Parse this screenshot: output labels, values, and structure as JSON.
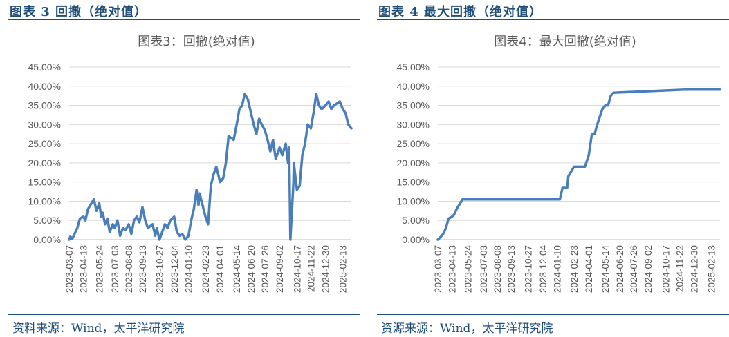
{
  "figures": [
    {
      "heading": "图表 3 回撤（绝对值）",
      "source": "资料来源：Wind，太平洋研究院"
    },
    {
      "heading": "图表 4 最大回撤（绝对值）",
      "source": "资源来源：Wind，太平洋研究院"
    }
  ],
  "chart_data": [
    {
      "type": "line",
      "title": "图表3：回撤(绝对值)",
      "ylim": [
        0,
        45
      ],
      "yticks": [
        "0.00%",
        "5.00%",
        "10.00%",
        "15.00%",
        "20.00%",
        "25.00%",
        "30.00%",
        "35.00%",
        "40.00%",
        "45.00%"
      ],
      "xticks": [
        "2023-03-07",
        "2023-04-13",
        "2023-05-24",
        "2023-07-03",
        "2023-08-08",
        "2023-09-13",
        "2023-10-27",
        "2023-12-04",
        "2024-01-10",
        "2024-02-23",
        "2024-04-01",
        "2024-05-14",
        "2024-06-20",
        "2024-07-26",
        "2024-09-02",
        "2024-10-17",
        "2024-11-22",
        "2024-12-30",
        "2025-02-13"
      ],
      "color": "#4a7ebb",
      "grid": "horizontal",
      "series": [
        {
          "x": [
            "2023-03-07",
            "2023-03-10",
            "2023-03-15",
            "2023-03-21",
            "2023-03-28",
            "2023-04-04",
            "2023-04-13",
            "2023-04-18",
            "2023-04-25",
            "2023-05-04",
            "2023-05-10",
            "2023-05-17",
            "2023-05-24",
            "2023-05-29",
            "2023-06-02",
            "2023-06-08",
            "2023-06-14",
            "2023-06-20",
            "2023-06-28",
            "2023-07-03",
            "2023-07-10",
            "2023-07-17",
            "2023-07-24",
            "2023-07-31",
            "2023-08-08",
            "2023-08-15",
            "2023-08-22",
            "2023-08-29",
            "2023-09-05",
            "2023-09-13",
            "2023-09-20",
            "2023-09-27",
            "2023-10-09",
            "2023-10-16",
            "2023-10-20",
            "2023-10-27",
            "2023-11-03",
            "2023-11-10",
            "2023-11-17",
            "2023-11-24",
            "2023-12-04",
            "2023-12-11",
            "2023-12-18",
            "2023-12-25",
            "2024-01-02",
            "2024-01-10",
            "2024-01-17",
            "2024-01-24",
            "2024-01-31",
            "2024-02-05",
            "2024-02-08",
            "2024-02-23",
            "2024-03-01",
            "2024-03-08",
            "2024-03-15",
            "2024-03-22",
            "2024-04-01",
            "2024-04-09",
            "2024-04-16",
            "2024-04-23",
            "2024-05-06",
            "2024-05-14",
            "2024-05-21",
            "2024-05-28",
            "2024-06-04",
            "2024-06-12",
            "2024-06-20",
            "2024-06-27",
            "2024-07-04",
            "2024-07-11",
            "2024-07-18",
            "2024-07-26",
            "2024-08-02",
            "2024-08-09",
            "2024-08-16",
            "2024-08-23",
            "2024-09-02",
            "2024-09-09",
            "2024-09-18",
            "2024-09-24",
            "2024-09-27",
            "2024-09-30",
            "2024-10-08",
            "2024-10-09",
            "2024-10-17",
            "2024-10-24",
            "2024-10-31",
            "2024-11-07",
            "2024-11-14",
            "2024-11-22",
            "2024-11-29",
            "2024-12-06",
            "2024-12-13",
            "2024-12-20",
            "2024-12-30",
            "2025-01-07",
            "2025-01-14",
            "2025-01-21",
            "2025-02-05",
            "2025-02-13",
            "2025-02-20",
            "2025-02-27",
            "2025-03-07"
          ],
          "y": [
            0,
            0.8,
            0.2,
            1.5,
            3,
            5.5,
            6,
            5,
            8,
            9.5,
            10.5,
            7.5,
            9.5,
            6,
            7,
            4,
            5.5,
            2,
            4,
            3,
            5,
            1,
            3,
            2.5,
            4,
            1.5,
            5,
            6,
            4.5,
            8.5,
            5,
            3,
            4,
            1,
            3,
            0,
            2,
            4,
            3,
            5,
            6,
            2,
            1,
            1.5,
            0,
            1,
            5,
            8,
            13,
            9,
            12,
            6,
            4,
            14,
            17,
            19,
            15,
            16,
            20,
            27,
            26,
            30,
            34,
            35,
            38,
            36.5,
            33,
            30,
            27.5,
            31.5,
            30,
            28.5,
            26,
            23,
            26,
            21,
            24,
            22,
            25,
            20,
            24,
            0,
            15,
            20,
            13,
            14,
            22,
            25,
            30,
            29,
            33,
            38,
            35,
            34,
            35,
            36,
            34,
            35,
            36,
            34,
            33,
            30,
            29
          ]
        }
      ]
    },
    {
      "type": "line",
      "title": "图表4：最大回撤(绝对值)",
      "ylim": [
        0,
        45
      ],
      "yticks": [
        "0.00%",
        "5.00%",
        "10.00%",
        "15.00%",
        "20.00%",
        "25.00%",
        "30.00%",
        "35.00%",
        "40.00%",
        "45.00%"
      ],
      "xticks": [
        "2023-03-07",
        "2023-04-13",
        "2023-05-24",
        "2023-07-03",
        "2023-08-08",
        "2023-09-13",
        "2023-10-27",
        "2023-12-04",
        "2024-01-10",
        "2024-02-23",
        "2024-04-01",
        "2024-05-14",
        "2024-06-20",
        "2024-07-26",
        "2024-09-02",
        "2024-10-17",
        "2024-11-22",
        "2024-12-30",
        "2025-02-13"
      ],
      "color": "#4a7ebb",
      "grid": "horizontal",
      "series": [
        {
          "x": [
            "2023-03-07",
            "2023-03-15",
            "2023-03-21",
            "2023-03-28",
            "2023-04-04",
            "2023-04-13",
            "2023-04-18",
            "2023-04-25",
            "2023-05-04",
            "2023-05-10",
            "2024-01-17",
            "2024-01-24",
            "2024-02-05",
            "2024-02-08",
            "2024-02-23",
            "2024-03-22",
            "2024-04-01",
            "2024-04-09",
            "2024-04-16",
            "2024-04-23",
            "2024-05-06",
            "2024-05-14",
            "2024-05-21",
            "2024-05-28",
            "2024-06-04",
            "2024-12-06",
            "2025-03-07"
          ],
          "y": [
            0,
            0.8,
            1.5,
            3,
            5.5,
            6,
            6.5,
            8,
            9.5,
            10.5,
            10.5,
            13.5,
            13.5,
            16.5,
            19,
            19,
            22,
            27.5,
            27.5,
            30,
            34,
            35,
            35,
            37.5,
            38.3,
            39.1,
            39.1
          ]
        }
      ]
    }
  ]
}
